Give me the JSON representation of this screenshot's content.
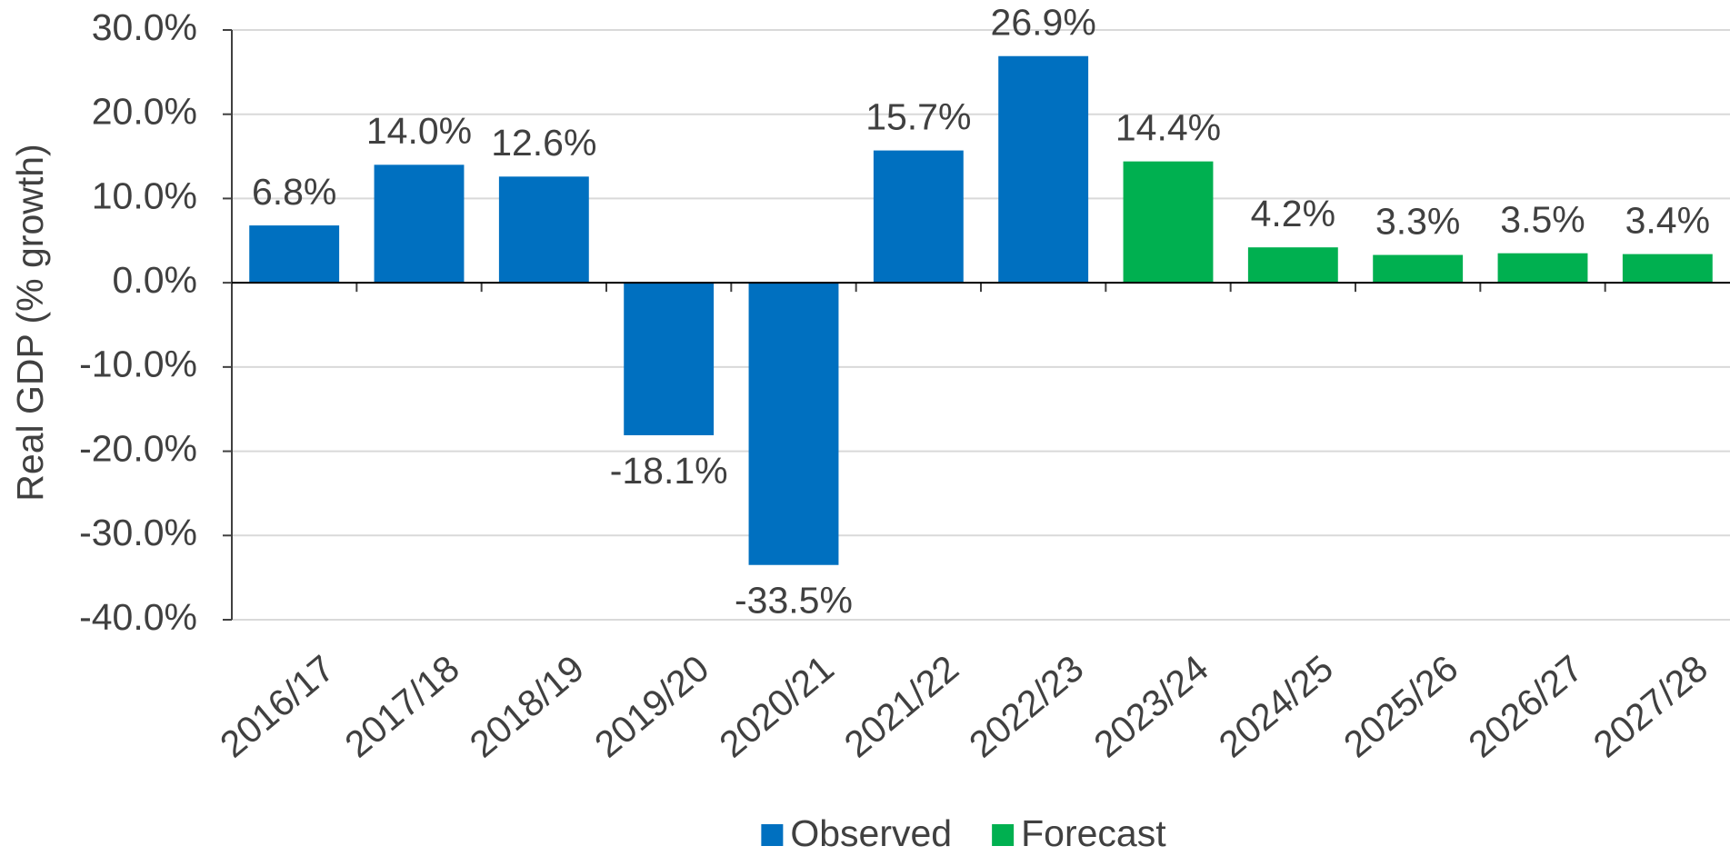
{
  "chart_data": {
    "type": "bar",
    "y_axis_label": "Real GDP (% growth)",
    "categories": [
      "2016/17",
      "2017/18",
      "2018/19",
      "2019/20",
      "2020/21",
      "2021/22",
      "2022/23",
      "2023/24",
      "2024/25",
      "2025/26",
      "2026/27",
      "2027/28"
    ],
    "series": [
      {
        "name": "Observed",
        "color": "#0070c0",
        "values": [
          6.8,
          14.0,
          12.6,
          -18.1,
          -33.5,
          15.7,
          26.9,
          null,
          null,
          null,
          null,
          null
        ],
        "value_labels": [
          "6.8%",
          "14.0%",
          "12.6%",
          "-18.1%",
          "-33.5%",
          "15.7%",
          "26.9%",
          null,
          null,
          null,
          null,
          null
        ]
      },
      {
        "name": "Forecast",
        "color": "#00b050",
        "values": [
          null,
          null,
          null,
          null,
          null,
          null,
          null,
          14.4,
          4.2,
          3.3,
          3.5,
          3.4
        ],
        "value_labels": [
          null,
          null,
          null,
          null,
          null,
          null,
          null,
          "14.4%",
          "4.2%",
          "3.3%",
          "3.5%",
          "3.4%"
        ]
      }
    ],
    "ylim": [
      -40,
      30
    ],
    "yticks": [
      {
        "value": -40,
        "label": "-40.0%"
      },
      {
        "value": -30,
        "label": "-30.0%"
      },
      {
        "value": -20,
        "label": "-20.0%"
      },
      {
        "value": -10,
        "label": "-10.0%"
      },
      {
        "value": 0,
        "label": "0.0%"
      },
      {
        "value": 10,
        "label": "10.0%"
      },
      {
        "value": 20,
        "label": "20.0%"
      },
      {
        "value": 30,
        "label": "30.0%"
      }
    ],
    "grid": true,
    "legend": "bottom"
  }
}
